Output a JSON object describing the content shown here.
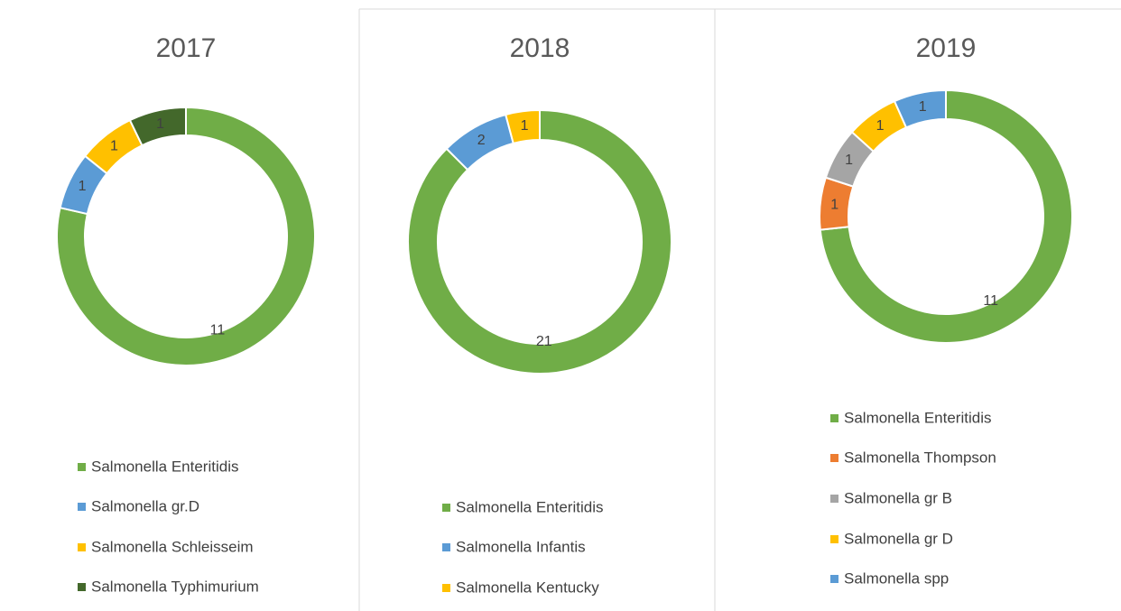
{
  "chart_data": [
    {
      "type": "donut",
      "title": "2017",
      "categories": [
        "Salmonella Enteritidis",
        "Salmonella gr.D",
        "Salmonella Schleisseim",
        "Salmonella Typhimurium"
      ],
      "values": [
        11,
        1,
        1,
        1
      ],
      "colors": [
        "#70ad47",
        "#5b9bd5",
        "#ffc000",
        "#43682b"
      ]
    },
    {
      "type": "donut",
      "title": "2018",
      "categories": [
        "Salmonella Enteritidis",
        "Salmonella Infantis",
        "Salmonella Kentucky"
      ],
      "values": [
        21,
        2,
        1
      ],
      "colors": [
        "#70ad47",
        "#5b9bd5",
        "#ffc000"
      ]
    },
    {
      "type": "donut",
      "title": "2019",
      "categories": [
        "Salmonella Enteritidis",
        "Salmonella Thompson",
        "Salmonella gr B",
        "Salmonella gr D",
        "Salmonella spp"
      ],
      "values": [
        11,
        1,
        1,
        1,
        1
      ],
      "colors": [
        "#70ad47",
        "#ed7d31",
        "#a5a5a5",
        "#ffc000",
        "#5b9bd5"
      ]
    }
  ]
}
